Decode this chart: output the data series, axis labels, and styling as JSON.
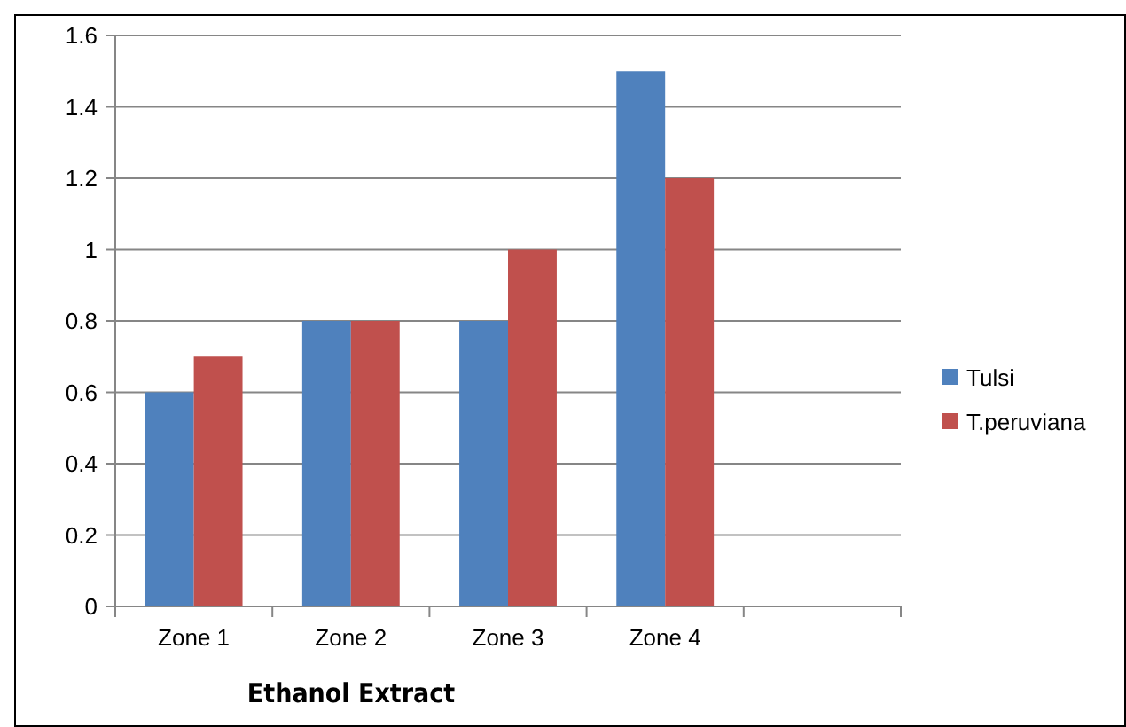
{
  "chart_data": {
    "type": "bar",
    "xlabel": "Ethanol Extract",
    "categories": [
      "Zone 1",
      "Zone 2",
      "Zone 3",
      "Zone 4",
      null
    ],
    "series": [
      {
        "name": "Tulsi",
        "color": "#4f81bd",
        "values": [
          0.6,
          0.8,
          0.8,
          1.5,
          null
        ]
      },
      {
        "name": "T.peruviana",
        "color": "#c0504d",
        "values": [
          0.7,
          0.8,
          1.0,
          1.2,
          null
        ]
      }
    ],
    "ylim": [
      0,
      1.6
    ],
    "yticks": [
      0,
      {
        "value": 0.2,
        "label": "0.2"
      },
      {
        "value": 0.4,
        "label": "0.4"
      },
      {
        "value": 0.6,
        "label": "0.6"
      },
      {
        "value": 0.8,
        "label": "0.8"
      },
      1,
      {
        "value": 1.2,
        "label": "1.2"
      },
      {
        "value": 1.4,
        "label": "1.4"
      },
      {
        "value": 1.6,
        "label": "1.6"
      }
    ],
    "grid": "y",
    "legend": "right"
  }
}
